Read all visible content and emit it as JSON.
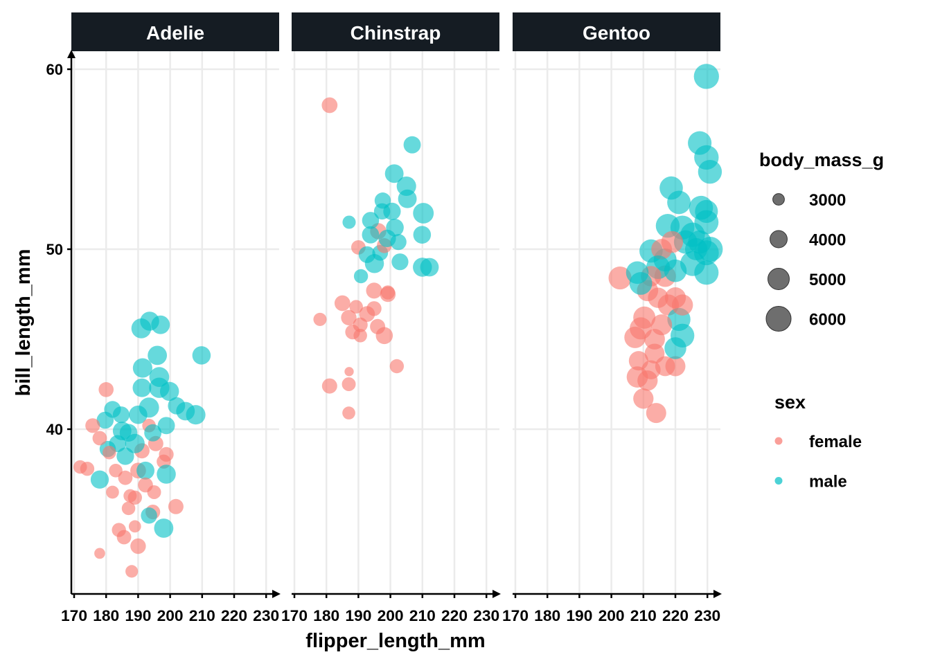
{
  "chart_data": {
    "type": "scatter",
    "facet_by": "species",
    "xlabel": "flipper_length_mm",
    "ylabel": "bill_length_mm",
    "xlim": [
      169,
      231
    ],
    "ylim": [
      30.8,
      61
    ],
    "x_ticks": [
      170,
      180,
      190,
      200,
      210,
      220,
      230
    ],
    "y_ticks": [
      40,
      50,
      60
    ],
    "grid": true,
    "colors": {
      "female": "#F8766D",
      "male": "#00BFC4",
      "size_legend": "#666666",
      "strip": "#151C23"
    },
    "legend": {
      "placement": "right",
      "size_title": "body_mass_g",
      "size_values": [
        3000,
        4000,
        5000,
        6000
      ],
      "size_labels": [
        "3000",
        "4000",
        "5000",
        "6000"
      ],
      "color_title": "sex",
      "color_labels": [
        "female",
        "male"
      ]
    },
    "panels": [
      {
        "species": "Adelie",
        "female": [
          [
            171.9,
            37.9,
            3300
          ],
          [
            174.1,
            37.8,
            3400
          ],
          [
            175.8,
            40.2,
            3500
          ],
          [
            178,
            33.1,
            2900
          ],
          [
            180,
            42.2,
            3550
          ],
          [
            178,
            39.5,
            3450
          ],
          [
            181,
            38.7,
            3300
          ],
          [
            182,
            36.5,
            3200
          ],
          [
            184,
            34.4,
            3400
          ],
          [
            185.6,
            34,
            3450
          ],
          [
            188,
            32.1,
            3150
          ],
          [
            190,
            33.5,
            3650
          ],
          [
            201.8,
            35.7,
            3600
          ],
          [
            198.8,
            38.6,
            3500
          ],
          [
            198,
            38.2,
            3400
          ],
          [
            195,
            36.5,
            3350
          ],
          [
            187,
            35.6,
            3300
          ],
          [
            189,
            36.2,
            3400
          ],
          [
            192.3,
            36.9,
            3550
          ],
          [
            193.4,
            40.2,
            3300
          ],
          [
            191.2,
            38.8,
            3600
          ],
          [
            186,
            37.3,
            3450
          ],
          [
            183,
            37.7,
            3300
          ],
          [
            189,
            34.6,
            3100
          ],
          [
            194.6,
            35.4,
            3500
          ],
          [
            187.5,
            36.3,
            3250
          ],
          [
            195.5,
            39.2,
            3600
          ],
          [
            190,
            37.7,
            3700
          ]
        ],
        "male": [
          [
            178,
            37.2,
            4200
          ],
          [
            179.7,
            40.5,
            3950
          ],
          [
            182,
            41.1,
            3900
          ],
          [
            180.5,
            38.9,
            3800
          ],
          [
            191,
            45.6,
            4600
          ],
          [
            193.6,
            46,
            4400
          ],
          [
            197,
            45.8,
            4300
          ],
          [
            196,
            44.1,
            4450
          ],
          [
            209.8,
            44.1,
            4250
          ],
          [
            208,
            40.8,
            4500
          ],
          [
            204.8,
            41,
            4300
          ],
          [
            199.8,
            42.1,
            4400
          ],
          [
            196.6,
            42.9,
            4600
          ],
          [
            191.4,
            43.4,
            4500
          ],
          [
            191.2,
            42.3,
            4300
          ],
          [
            196.6,
            42.3,
            4700
          ],
          [
            184.7,
            40.8,
            3900
          ],
          [
            187,
            39.8,
            4100
          ],
          [
            190,
            40.8,
            4250
          ],
          [
            193.4,
            41.2,
            4650
          ],
          [
            198.8,
            40.2,
            4000
          ],
          [
            198,
            34.5,
            4450
          ],
          [
            198.8,
            37.5,
            4400
          ],
          [
            193.4,
            35.2,
            3800
          ],
          [
            192.3,
            37.7,
            4150
          ],
          [
            185,
            39.9,
            4300
          ],
          [
            202,
            41.3,
            4000
          ],
          [
            189,
            39.2,
            4500
          ],
          [
            194.6,
            39.8,
            4000
          ],
          [
            186,
            38.5,
            4050
          ],
          [
            183.6,
            39.2,
            3950
          ]
        ]
      },
      {
        "species": "Chinstrap",
        "female": [
          [
            181,
            58,
            3700
          ],
          [
            178,
            46.1,
            3250
          ],
          [
            181,
            42.4,
            3600
          ],
          [
            187.1,
            43.2,
            2700
          ],
          [
            187,
            42.5,
            3350
          ],
          [
            187,
            40.9,
            3200
          ],
          [
            185,
            47,
            3700
          ],
          [
            190,
            50.1,
            3450
          ],
          [
            189.3,
            46.8,
            3300
          ],
          [
            187,
            46.2,
            3650
          ],
          [
            190.6,
            45.8,
            3500
          ],
          [
            192.7,
            46.4,
            3700
          ],
          [
            194.9,
            46.7,
            3525
          ],
          [
            196,
            45.7,
            3600
          ],
          [
            198.1,
            45.2,
            3950
          ],
          [
            199.2,
            47.6,
            3400
          ],
          [
            199.2,
            47.5,
            3675
          ],
          [
            194.9,
            47.7,
            3750
          ],
          [
            202,
            43.5,
            3400
          ],
          [
            188.2,
            45.4,
            3525
          ],
          [
            190.6,
            45.2,
            3300
          ],
          [
            196.2,
            51,
            3800
          ],
          [
            198.1,
            50.2,
            3550
          ]
        ],
        "male": [
          [
            206.8,
            55.8,
            4000
          ],
          [
            201.2,
            54.2,
            4300
          ],
          [
            205,
            53.5,
            4500
          ],
          [
            197.6,
            52.7,
            3800
          ],
          [
            197.4,
            52.1,
            3800
          ],
          [
            187.1,
            51.5,
            3250
          ],
          [
            193.8,
            51.6,
            3950
          ],
          [
            200.5,
            52.1,
            4050
          ],
          [
            205.3,
            52.8,
            4300
          ],
          [
            210.3,
            52,
            4800
          ],
          [
            209.9,
            50.8,
            4100
          ],
          [
            210,
            49,
            4400
          ],
          [
            212.2,
            49,
            4300
          ],
          [
            203,
            49.3,
            3900
          ],
          [
            202.5,
            50.4,
            3775
          ],
          [
            201.4,
            51.2,
            4100
          ],
          [
            195,
            49.2,
            4400
          ],
          [
            192.7,
            49.7,
            3900
          ],
          [
            190.8,
            48.5,
            3400
          ],
          [
            196.8,
            49.8,
            3700
          ],
          [
            199,
            50.6,
            4050
          ],
          [
            193.8,
            50.8,
            4000
          ]
        ]
      },
      {
        "species": "Gentoo",
        "female": [
          [
            202.7,
            48.4,
            5400
          ],
          [
            214,
            40.9,
            4650
          ],
          [
            210,
            41.7,
            4700
          ],
          [
            208.1,
            42.9,
            4950
          ],
          [
            208.5,
            43.8,
            4500
          ],
          [
            211.3,
            42.7,
            4700
          ],
          [
            212.4,
            43.3,
            4400
          ],
          [
            216.8,
            43.5,
            4600
          ],
          [
            220,
            43.5,
            4650
          ],
          [
            207.4,
            45.1,
            5000
          ],
          [
            210.3,
            46.2,
            5200
          ],
          [
            213.5,
            45,
            4800
          ],
          [
            215.7,
            45.8,
            4850
          ],
          [
            217.8,
            46.9,
            4900
          ],
          [
            220,
            47.3,
            4875
          ],
          [
            214.6,
            47.3,
            4725
          ],
          [
            211.3,
            47.7,
            4950
          ],
          [
            212.4,
            48.5,
            4750
          ],
          [
            216.8,
            48.5,
            5000
          ],
          [
            219,
            50.4,
            5100
          ],
          [
            215.7,
            50,
            4800
          ],
          [
            209.2,
            45.6,
            5200
          ],
          [
            213.5,
            44.2,
            4600
          ],
          [
            222.2,
            46.9,
            4900
          ]
        ],
        "male": [
          [
            229.7,
            59.6,
            6050
          ],
          [
            227.6,
            55.9,
            5600
          ],
          [
            229.7,
            55.1,
            5850
          ],
          [
            230.8,
            54.3,
            5650
          ],
          [
            218.7,
            53.4,
            5500
          ],
          [
            221.1,
            52.6,
            5550
          ],
          [
            228,
            52.3,
            5700
          ],
          [
            229.7,
            52.1,
            5400
          ],
          [
            229.7,
            51.5,
            5750
          ],
          [
            217.6,
            51.3,
            5650
          ],
          [
            212.4,
            49.9,
            5500
          ],
          [
            208.1,
            48.7,
            5300
          ],
          [
            209.2,
            48.1,
            5350
          ],
          [
            222.2,
            45.2,
            5650
          ],
          [
            220,
            44.5,
            5100
          ],
          [
            221.1,
            46.1,
            5450
          ],
          [
            223.2,
            50.4,
            5550
          ],
          [
            225.4,
            50.8,
            5850
          ],
          [
            227.6,
            50.4,
            5500
          ],
          [
            229.7,
            49.8,
            5950
          ],
          [
            229.7,
            48.7,
            5800
          ],
          [
            225.4,
            49.2,
            5950
          ],
          [
            216.8,
            49.4,
            5400
          ],
          [
            222.2,
            51.2,
            5700
          ],
          [
            226.5,
            50,
            5200
          ],
          [
            220,
            48.8,
            5300
          ],
          [
            214.6,
            49,
            5600
          ],
          [
            230.9,
            50,
            6000
          ]
        ]
      }
    ]
  }
}
